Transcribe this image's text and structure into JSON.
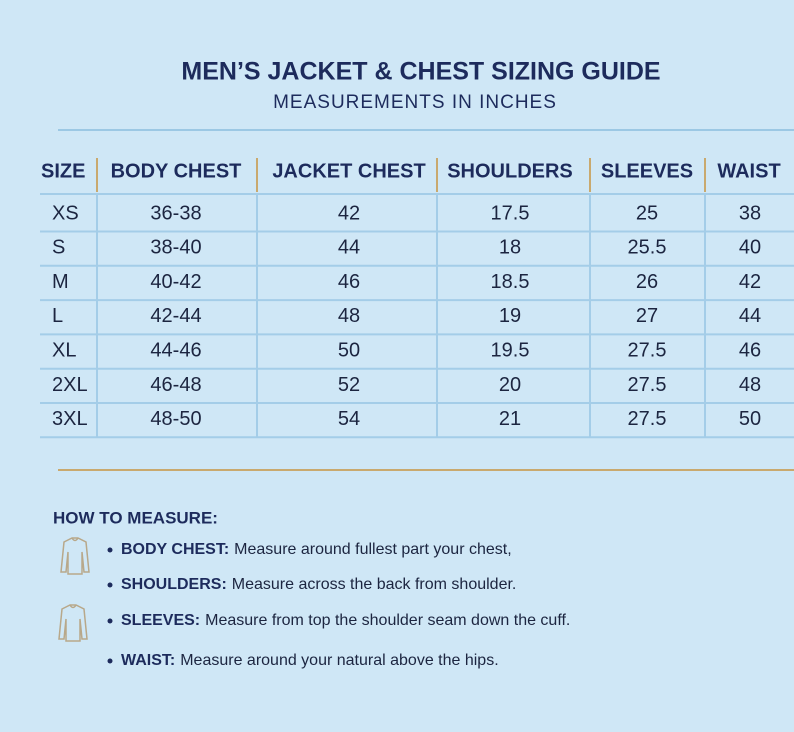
{
  "header": {
    "title": "MEN’S JACKET & CHEST SIZING GUIDE",
    "subtitle": "MEASUREMENTS IN INCHES"
  },
  "table": {
    "columns": [
      "SIZE",
      "BODY CHEST",
      "JACKET CHEST",
      "SHOULDERS",
      "SLEEVES",
      "WAIST"
    ],
    "rows": [
      [
        "XS",
        "36-38",
        "42",
        "17.5",
        "25",
        "38"
      ],
      [
        "S",
        "38-40",
        "44",
        "18",
        "25.5",
        "40"
      ],
      [
        "M",
        "40-42",
        "46",
        "18.5",
        "26",
        "42"
      ],
      [
        "L",
        "42-44",
        "48",
        "19",
        "27",
        "44"
      ],
      [
        "XL",
        "44-46",
        "50",
        "19.5",
        "27.5",
        "46"
      ],
      [
        "2XL",
        "46-48",
        "52",
        "20",
        "27.5",
        "48"
      ],
      [
        "3XL",
        "48-50",
        "54",
        "21",
        "27.5",
        "50"
      ]
    ]
  },
  "how_to_measure": {
    "title": "HOW TO MEASURE:",
    "items": [
      {
        "label": "BODY CHEST:",
        "text": "Measure around fullest part your chest,"
      },
      {
        "label": "SHOULDERS:",
        "text": "Measure across the back from shoulder."
      },
      {
        "label": "SLEEVES:",
        "text": "Measure from top the shoulder seam down the cuff."
      },
      {
        "label": "WAIST:",
        "text": "Measure around your natural above the hips."
      }
    ]
  }
}
